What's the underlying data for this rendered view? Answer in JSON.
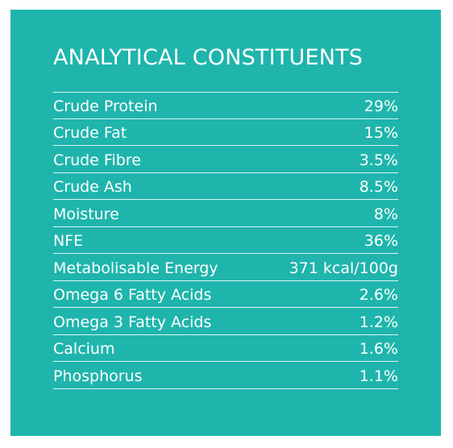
{
  "title": "ANALYTICAL CONSTITUENTS",
  "colors": {
    "panel_background": "#1fb5ac",
    "text": "#ffffff"
  },
  "rows": [
    {
      "label": "Crude Protein",
      "value": "29%"
    },
    {
      "label": "Crude Fat",
      "value": "15%"
    },
    {
      "label": "Crude Fibre",
      "value": "3.5%"
    },
    {
      "label": "Crude Ash",
      "value": "8.5%"
    },
    {
      "label": "Moisture",
      "value": "8%"
    },
    {
      "label": "NFE",
      "value": "36%"
    },
    {
      "label": "Metabolisable Energy",
      "value": "371 kcal/100g"
    },
    {
      "label": "Omega 6 Fatty Acids",
      "value": "2.6%"
    },
    {
      "label": "Omega 3 Fatty Acids",
      "value": "1.2%"
    },
    {
      "label": "Calcium",
      "value": "1.6%"
    },
    {
      "label": "Phosphorus",
      "value": "1.1%"
    }
  ]
}
